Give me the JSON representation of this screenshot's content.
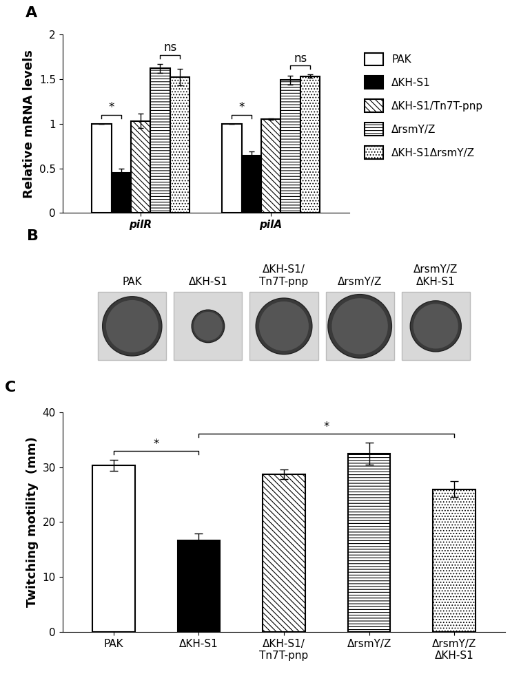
{
  "chart_data": [
    {
      "type": "bar",
      "title": "A",
      "categories": [
        "pilR",
        "pilA"
      ],
      "y_label": "Relative mRNA levels",
      "ylim": [
        0,
        2
      ],
      "yticks": [
        0,
        0.5,
        1,
        1.5,
        2
      ],
      "legend": "right",
      "series": [
        {
          "name": "PAK",
          "color": "#ffffff",
          "values": [
            1,
            1
          ],
          "errors": [
            0,
            0
          ]
        },
        {
          "name": "ΔKH-S1",
          "color": "#000000",
          "values": [
            0.45,
            0.64
          ],
          "errors": [
            0.05,
            0.05
          ]
        },
        {
          "name": "ΔKH-S1/Tn7T-pnp",
          "color": "#ffffff",
          "values": [
            1.03,
            1.05
          ],
          "errors": [
            0.08,
            0.01
          ]
        },
        {
          "name": "ΔrsmY/Z",
          "color": "#ffffff",
          "values": [
            1.62,
            1.49
          ],
          "errors": [
            0.05,
            0.05
          ]
        },
        {
          "name": "ΔKH-S1ΔrsmY/Z",
          "color": "#ffffff",
          "values": [
            1.52,
            1.53
          ],
          "errors": [
            0.09,
            0.02
          ]
        }
      ],
      "annotations": [
        {
          "text": "*",
          "category": "pilR",
          "between": [
            "PAK",
            "ΔKH-S1"
          ]
        },
        {
          "text": "ns",
          "category": "pilR",
          "between": [
            "ΔrsmY/Z",
            "ΔKH-S1ΔrsmY/Z"
          ]
        },
        {
          "text": "*",
          "category": "pilA",
          "between": [
            "PAK",
            "ΔKH-S1"
          ]
        },
        {
          "text": "ns",
          "category": "pilA",
          "between": [
            "ΔrsmY/Z",
            "ΔKH-S1ΔrsmY/Z"
          ]
        }
      ]
    },
    {
      "type": "image",
      "title": "B",
      "categories": [
        "PAK",
        "ΔKH-S1",
        "ΔKH-S1/\nTn7T-pnp",
        "ΔrsmY/Z",
        "ΔrsmY/Z\nΔKH-S1"
      ]
    },
    {
      "type": "bar",
      "title": "C",
      "categories": [
        "PAK",
        "ΔKH-S1",
        "ΔKH-S1/\nTn7T-pnp",
        "ΔrsmY/Z",
        "ΔrsmY/Z\nΔKH-S1"
      ],
      "y_label": "Twitching motility  (mm)",
      "ylim": [
        0,
        40
      ],
      "yticks": [
        0,
        10,
        20,
        30,
        40
      ],
      "colors": [
        "#ffffff",
        "#000000",
        "#ffffff",
        "#ffffff",
        "#ffffff"
      ],
      "values": [
        30.3,
        16.7,
        28.7,
        32.5,
        26.0
      ],
      "errors": [
        1.0,
        1.2,
        0.9,
        2.0,
        1.4
      ],
      "annotations": [
        {
          "text": "*",
          "between": [
            "PAK",
            "ΔKH-S1"
          ]
        },
        {
          "text": "*",
          "between": [
            "ΔKH-S1",
            "ΔrsmY/Z\nΔKH-S1"
          ]
        }
      ]
    }
  ]
}
